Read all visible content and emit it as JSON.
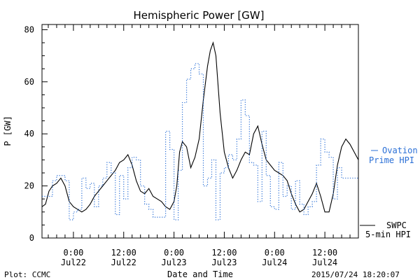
{
  "chart_data": {
    "type": "line",
    "title": "Hemispheric Power [GW]",
    "ylabel": "P [GW]",
    "xlabel": "Date and Time",
    "ylim": [
      0,
      82
    ],
    "yticks": [
      0,
      20,
      40,
      60,
      80
    ],
    "xlim": [
      "2015-07-21T16:30",
      "2015-07-24T20:00"
    ],
    "xticks": [
      {
        "time": "2015-07-22T00:00",
        "label1": "0:00",
        "label2": "Jul22"
      },
      {
        "time": "2015-07-22T12:00",
        "label1": "12:00",
        "label2": "Jul22"
      },
      {
        "time": "2015-07-23T00:00",
        "label1": "0:00",
        "label2": "Jul23"
      },
      {
        "time": "2015-07-23T12:00",
        "label1": "12:00",
        "label2": "Jul23"
      },
      {
        "time": "2015-07-24T00:00",
        "label1": "0:00",
        "label2": "Jul24"
      },
      {
        "time": "2015-07-24T12:00",
        "label1": "12:00",
        "label2": "Jul24"
      }
    ],
    "grid": false,
    "series": [
      {
        "name": "SWPC 5-min HPI",
        "color": "#000000",
        "style": "solid",
        "x": [
          "2015-07-21T16:30",
          "2015-07-21T17:20",
          "2015-07-21T18:10",
          "2015-07-21T19:00",
          "2015-07-21T20:00",
          "2015-07-21T21:00",
          "2015-07-21T22:00",
          "2015-07-21T23:00",
          "2015-07-22T00:00",
          "2015-07-22T01:00",
          "2015-07-22T02:00",
          "2015-07-22T03:00",
          "2015-07-22T04:00",
          "2015-07-22T05:00",
          "2015-07-22T06:00",
          "2015-07-22T07:00",
          "2015-07-22T08:00",
          "2015-07-22T09:00",
          "2015-07-22T10:00",
          "2015-07-22T11:00",
          "2015-07-22T12:00",
          "2015-07-22T13:00",
          "2015-07-22T14:00",
          "2015-07-22T15:00",
          "2015-07-22T16:00",
          "2015-07-22T17:00",
          "2015-07-22T18:00",
          "2015-07-22T19:00",
          "2015-07-22T20:00",
          "2015-07-22T21:00",
          "2015-07-22T22:00",
          "2015-07-22T23:00",
          "2015-07-23T00:00",
          "2015-07-23T00:40",
          "2015-07-23T01:20",
          "2015-07-23T02:00",
          "2015-07-23T03:00",
          "2015-07-23T04:00",
          "2015-07-23T05:00",
          "2015-07-23T06:00",
          "2015-07-23T07:00",
          "2015-07-23T08:00",
          "2015-07-23T08:40",
          "2015-07-23T09:20",
          "2015-07-23T10:00",
          "2015-07-23T11:00",
          "2015-07-23T12:00",
          "2015-07-23T13:00",
          "2015-07-23T14:00",
          "2015-07-23T15:00",
          "2015-07-23T16:00",
          "2015-07-23T17:00",
          "2015-07-23T18:00",
          "2015-07-23T19:00",
          "2015-07-23T20:00",
          "2015-07-23T21:00",
          "2015-07-23T22:00",
          "2015-07-23T23:00",
          "2015-07-24T00:00",
          "2015-07-24T01:00",
          "2015-07-24T02:00",
          "2015-07-24T03:00",
          "2015-07-24T04:00",
          "2015-07-24T05:00",
          "2015-07-24T06:00",
          "2015-07-24T07:00",
          "2015-07-24T08:00",
          "2015-07-24T09:00",
          "2015-07-24T10:00",
          "2015-07-24T11:00",
          "2015-07-24T12:00",
          "2015-07-24T13:00",
          "2015-07-24T14:00",
          "2015-07-24T15:00",
          "2015-07-24T16:00",
          "2015-07-24T17:00",
          "2015-07-24T18:00",
          "2015-07-24T19:00",
          "2015-07-24T20:00"
        ],
        "y": [
          12,
          13,
          18,
          20,
          21,
          23,
          20,
          14,
          12,
          11,
          10,
          11,
          13,
          16,
          18,
          20,
          22,
          24,
          26,
          29,
          30,
          32,
          28,
          22,
          18,
          17,
          19,
          16,
          15,
          14,
          12,
          11,
          14,
          20,
          33,
          37,
          35,
          27,
          31,
          38,
          53,
          66,
          72,
          75,
          70,
          48,
          33,
          27,
          23,
          26,
          30,
          33,
          32,
          40,
          43,
          36,
          30,
          28,
          26,
          25,
          24,
          22,
          17,
          13,
          10,
          11,
          14,
          17,
          21,
          16,
          10,
          10,
          17,
          28,
          35,
          38,
          36,
          33,
          30
        ]
      },
      {
        "name": "Ovation Prime HPI",
        "color": "#2a6fd6",
        "style": "dotted-step",
        "x": [
          "2015-07-21T16:30",
          "2015-07-21T19:00",
          "2015-07-21T20:00",
          "2015-07-21T22:00",
          "2015-07-21T23:00",
          "2015-07-22T00:00",
          "2015-07-22T01:00",
          "2015-07-22T02:00",
          "2015-07-22T03:00",
          "2015-07-22T04:00",
          "2015-07-22T05:00",
          "2015-07-22T06:00",
          "2015-07-22T07:00",
          "2015-07-22T08:00",
          "2015-07-22T09:00",
          "2015-07-22T10:00",
          "2015-07-22T11:00",
          "2015-07-22T12:00",
          "2015-07-22T13:00",
          "2015-07-22T14:00",
          "2015-07-22T15:00",
          "2015-07-22T16:00",
          "2015-07-22T17:00",
          "2015-07-22T18:00",
          "2015-07-22T19:00",
          "2015-07-22T20:00",
          "2015-07-22T22:00",
          "2015-07-22T23:00",
          "2015-07-23T00:00",
          "2015-07-23T01:00",
          "2015-07-23T02:00",
          "2015-07-23T03:00",
          "2015-07-23T04:00",
          "2015-07-23T05:00",
          "2015-07-23T06:00",
          "2015-07-23T07:00",
          "2015-07-23T08:00",
          "2015-07-23T09:00",
          "2015-07-23T10:00",
          "2015-07-23T11:00",
          "2015-07-23T12:00",
          "2015-07-23T13:00",
          "2015-07-23T14:00",
          "2015-07-23T15:00",
          "2015-07-23T16:00",
          "2015-07-23T17:00",
          "2015-07-23T18:00",
          "2015-07-23T19:00",
          "2015-07-23T20:00",
          "2015-07-23T21:00",
          "2015-07-23T22:00",
          "2015-07-23T23:00",
          "2015-07-24T00:00",
          "2015-07-24T01:00",
          "2015-07-24T02:00",
          "2015-07-24T03:00",
          "2015-07-24T04:00",
          "2015-07-24T05:00",
          "2015-07-24T06:00",
          "2015-07-24T07:00",
          "2015-07-24T08:00",
          "2015-07-24T09:00",
          "2015-07-24T10:00",
          "2015-07-24T11:00",
          "2015-07-24T12:00",
          "2015-07-24T13:00",
          "2015-07-24T14:00",
          "2015-07-24T15:00",
          "2015-07-24T16:00",
          "2015-07-24T17:00",
          "2015-07-24T18:00",
          "2015-07-24T19:00"
        ],
        "y": [
          16,
          22,
          24,
          22,
          7,
          10,
          11,
          23,
          19,
          21,
          12,
          20,
          23,
          29,
          25,
          9,
          24,
          15,
          27,
          31,
          30,
          20,
          13,
          11,
          8,
          8,
          41,
          34,
          7,
          26,
          52,
          61,
          65,
          67,
          63,
          20,
          23,
          30,
          7,
          25,
          27,
          32,
          30,
          38,
          53,
          47,
          29,
          28,
          14,
          41,
          24,
          12,
          11,
          29,
          16,
          20,
          11,
          22,
          13,
          9,
          12,
          14,
          28,
          38,
          33,
          31,
          15,
          27,
          23,
          23,
          23,
          23
        ]
      }
    ]
  },
  "legend": {
    "ovation_line1": "Ovation",
    "ovation_line2": "Prime HPI",
    "swpc_line1": "SWPC",
    "swpc_line2": "5-min HPI"
  },
  "footer": {
    "plot_source": "Plot: CCMC",
    "timestamp": "2015/07/24 18:20:07"
  },
  "colors": {
    "swpc": "#000000",
    "ovation": "#2a6fd6"
  }
}
